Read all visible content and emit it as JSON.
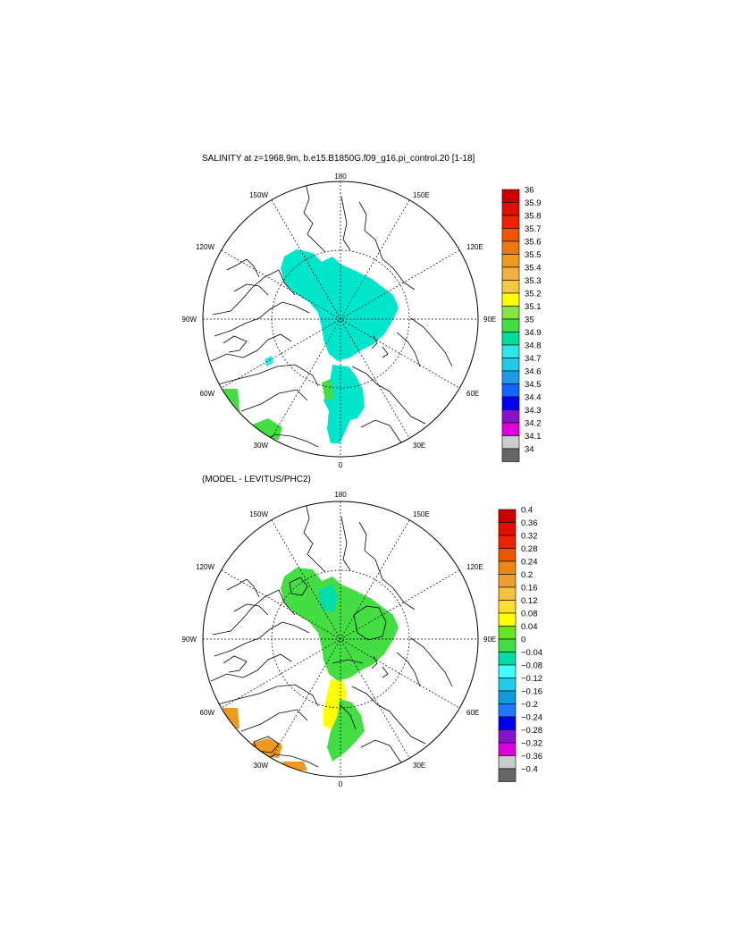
{
  "top": {
    "title": "SALINITY at z=1968.9m, b.e15.B1850G.f09_g16.pi_control.20 [1-18]",
    "lon_labels": {
      "n": "180",
      "s": "0",
      "e": "90E",
      "w": "90W",
      "ne": "150E",
      "nw": "150W",
      "ene": "120E",
      "wnw": "120W",
      "se": "30E",
      "sw": "30W",
      "ese": "60E",
      "wsw": "60W"
    },
    "colorbar": {
      "labels": [
        "36",
        "35.9",
        "35.8",
        "35.7",
        "35.6",
        "35.5",
        "35.4",
        "35.3",
        "35.2",
        "35.1",
        "35",
        "34.9",
        "34.8",
        "34.7",
        "34.6",
        "34.5",
        "34.4",
        "34.3",
        "34.2",
        "34.1",
        "34"
      ],
      "colors": [
        "#cc0000",
        "#dd1100",
        "#ee2200",
        "#ee5500",
        "#ee7711",
        "#ee9922",
        "#f4b040",
        "#f6c840",
        "#ffff00",
        "#88e644",
        "#44dd44",
        "#00dd99",
        "#33e6e6",
        "#22c8e6",
        "#2299e6",
        "#1166ff",
        "#0000ee",
        "#8811cc",
        "#dd00dd",
        "#cccccc",
        "#666666"
      ]
    }
  },
  "bottom": {
    "title": "(MODEL - LEVITUS/PHC2)",
    "lon_labels": {
      "n": "180",
      "s": "0",
      "e": "90E",
      "w": "90W",
      "ne": "150E",
      "nw": "150W",
      "ene": "120E",
      "wnw": "120W",
      "se": "30E",
      "sw": "30W",
      "ese": "60E",
      "wsw": "60W"
    },
    "colorbar": {
      "labels": [
        "0.4",
        "0.36",
        "0.32",
        "0.28",
        "0.24",
        "0.2",
        "0.16",
        "0.12",
        "0.08",
        "0.04",
        "0",
        "−0.04",
        "−0.08",
        "−0.12",
        "−0.16",
        "−0.2",
        "−0.24",
        "−0.28",
        "−0.32",
        "−0.36",
        "−0.4"
      ],
      "colors": [
        "#cc0000",
        "#dd1100",
        "#ee2200",
        "#ee5500",
        "#ee8811",
        "#f0a030",
        "#f8c040",
        "#ffdd33",
        "#ffff00",
        "#66e622",
        "#44dd44",
        "#00ddaa",
        "#44ffff",
        "#22ccee",
        "#1199dd",
        "#2277ff",
        "#0000ee",
        "#8811cc",
        "#dd00dd",
        "#cccccc",
        "#666666"
      ]
    }
  }
}
